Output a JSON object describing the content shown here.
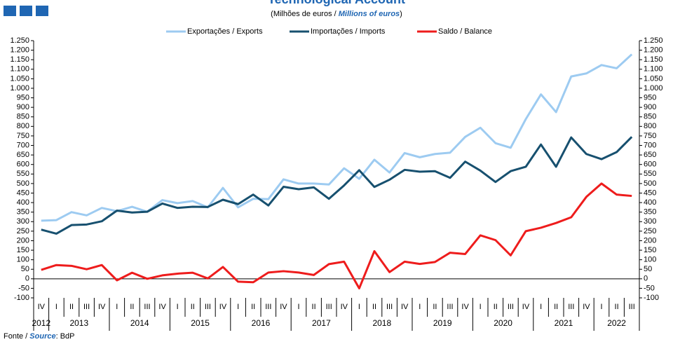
{
  "chart_data": {
    "type": "line",
    "title": "Technological Account",
    "subtitle": [
      "(Milhões de euros / ",
      "Millions of euros",
      ")"
    ],
    "source": [
      "Fonte / ",
      "Source",
      ": BdP"
    ],
    "groups": [
      {
        "label": "2012",
        "categories": [
          "IV"
        ]
      },
      {
        "label": "2013",
        "categories": [
          "I",
          "II",
          "III",
          "IV"
        ]
      },
      {
        "label": "2014",
        "categories": [
          "I",
          "II",
          "III",
          "IV"
        ]
      },
      {
        "label": "2015",
        "categories": [
          "I",
          "II",
          "III",
          "IV"
        ]
      },
      {
        "label": "2016",
        "categories": [
          "I",
          "II",
          "III",
          "IV"
        ]
      },
      {
        "label": "2017",
        "categories": [
          "I",
          "II",
          "III",
          "IV"
        ]
      },
      {
        "label": "2018",
        "categories": [
          "I",
          "II",
          "III",
          "IV"
        ]
      },
      {
        "label": "2019",
        "categories": [
          "I",
          "II",
          "III",
          "IV"
        ]
      },
      {
        "label": "2020",
        "categories": [
          "I",
          "II",
          "III",
          "IV"
        ]
      },
      {
        "label": "2021",
        "categories": [
          "I",
          "II",
          "III",
          "IV"
        ]
      },
      {
        "label": "2022",
        "categories": [
          "I",
          "II",
          "III"
        ]
      }
    ],
    "series": [
      {
        "name": "Exportações / Exports",
        "color": "#9dcbf1",
        "values": [
          305,
          308,
          350,
          333,
          372,
          355,
          378,
          352,
          413,
          397,
          408,
          375,
          477,
          375,
          420,
          418,
          522,
          500,
          500,
          495,
          580,
          525,
          625,
          558,
          660,
          638,
          655,
          662,
          745,
          793,
          712,
          688,
          838,
          968,
          875,
          1062,
          1078,
          1122,
          1105,
          1178
        ]
      },
      {
        "name": "Importações / Imports",
        "color": "#17506f",
        "values": [
          258,
          237,
          282,
          285,
          302,
          358,
          348,
          352,
          395,
          372,
          378,
          377,
          415,
          392,
          442,
          385,
          483,
          470,
          480,
          420,
          490,
          570,
          482,
          520,
          572,
          562,
          565,
          530,
          615,
          568,
          508,
          565,
          588,
          705,
          588,
          742,
          655,
          628,
          665,
          745
        ]
      },
      {
        "name": "Saldo / Balance",
        "color": "#ee1c1c",
        "values": [
          47,
          72,
          68,
          50,
          72,
          -8,
          32,
          0,
          18,
          27,
          32,
          2,
          62,
          -15,
          -18,
          33,
          40,
          33,
          20,
          77,
          90,
          -50,
          145,
          35,
          90,
          78,
          88,
          137,
          130,
          228,
          203,
          123,
          250,
          268,
          293,
          323,
          430,
          500,
          442,
          435
        ]
      }
    ],
    "ylim": [
      -100,
      1250
    ],
    "yticks": [
      -100,
      -50,
      0,
      50,
      100,
      150,
      200,
      250,
      300,
      350,
      400,
      450,
      500,
      550,
      600,
      650,
      700,
      750,
      800,
      850,
      900,
      950,
      {
        "value": 1000,
        "label": "1.000"
      },
      {
        "value": 1050,
        "label": "1.050"
      },
      {
        "value": 1100,
        "label": "1.100"
      },
      {
        "value": 1150,
        "label": "1.150"
      },
      {
        "value": 1200,
        "label": "1.200"
      },
      {
        "value": 1250,
        "label": "1.250"
      }
    ],
    "grid": false,
    "legend": "top"
  }
}
